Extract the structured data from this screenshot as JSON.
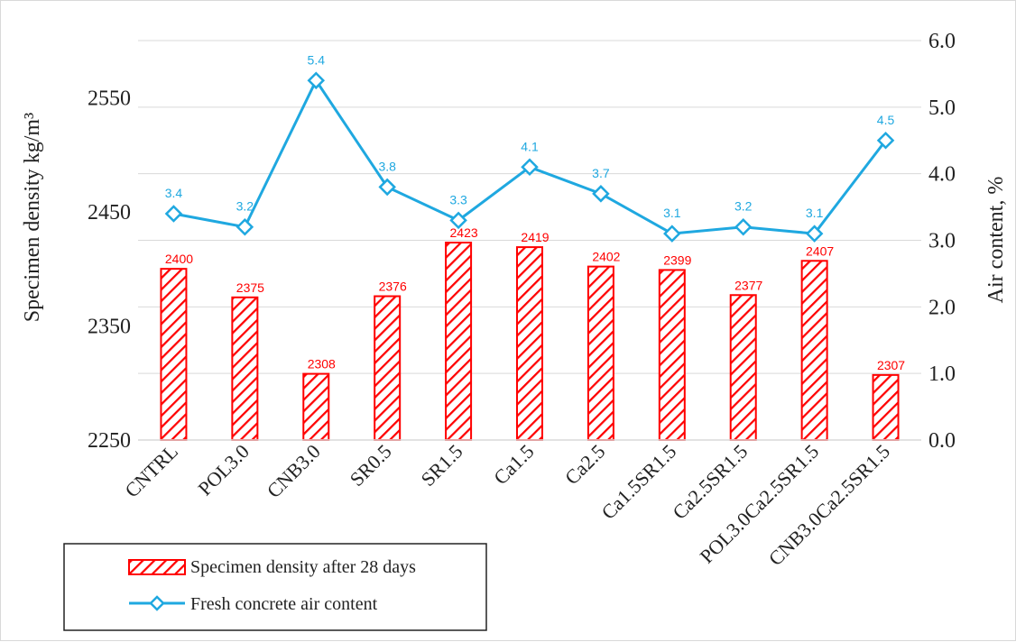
{
  "chart_data": {
    "type": "bar",
    "categories": [
      "CNTRL",
      "POL3.0",
      "CNB3.0",
      "SR0.5",
      "SR1.5",
      "Ca1.5",
      "Ca2.5",
      "Ca1.5SR1.5",
      "Ca2.5SR1.5",
      "POL3.0Ca2.5SR1.5",
      "CNB3.0Ca2.5SR1.5"
    ],
    "series": [
      {
        "name": "Specimen density after 28 days",
        "type": "bar",
        "axis": "left",
        "color": "#ff0000",
        "pattern": "diagonal-hatch",
        "values": [
          2400,
          2375,
          2308,
          2376,
          2423,
          2419,
          2402,
          2399,
          2377,
          2407,
          2307
        ],
        "labels": [
          "2400",
          "2375",
          "2308",
          "2376",
          "2423",
          "2419",
          "2402",
          "2399",
          "2377",
          "2407",
          "2307"
        ]
      },
      {
        "name": "Fresh concrete air content",
        "type": "line",
        "marker": "diamond",
        "axis": "right",
        "color": "#1fa8e0",
        "values": [
          3.4,
          3.2,
          5.4,
          3.8,
          3.3,
          4.1,
          3.7,
          3.1,
          3.2,
          3.1,
          4.5
        ],
        "labels": [
          "3.4",
          "3.2",
          "5.4",
          "3.8",
          "3.3",
          "4.1",
          "3.7",
          "3.1",
          "3.2",
          "3.1",
          "4.5"
        ]
      }
    ],
    "y_left": {
      "label": "Specimen density kg/m³",
      "ylim": [
        2250,
        2600
      ],
      "ticks": [
        2250,
        2350,
        2450,
        2550
      ],
      "tick_labels": [
        "2250",
        "2350",
        "2450",
        "2550"
      ]
    },
    "y_right": {
      "label": "Air content, %",
      "ylim": [
        0,
        6
      ],
      "ticks": [
        0,
        1,
        2,
        3,
        4,
        5,
        6
      ],
      "tick_labels": [
        "0.0",
        "1.0",
        "2.0",
        "3.0",
        "4.0",
        "5.0",
        "6.0"
      ]
    },
    "xlabel": "",
    "grid": "horizontal",
    "legend_position": "bottom-left"
  }
}
